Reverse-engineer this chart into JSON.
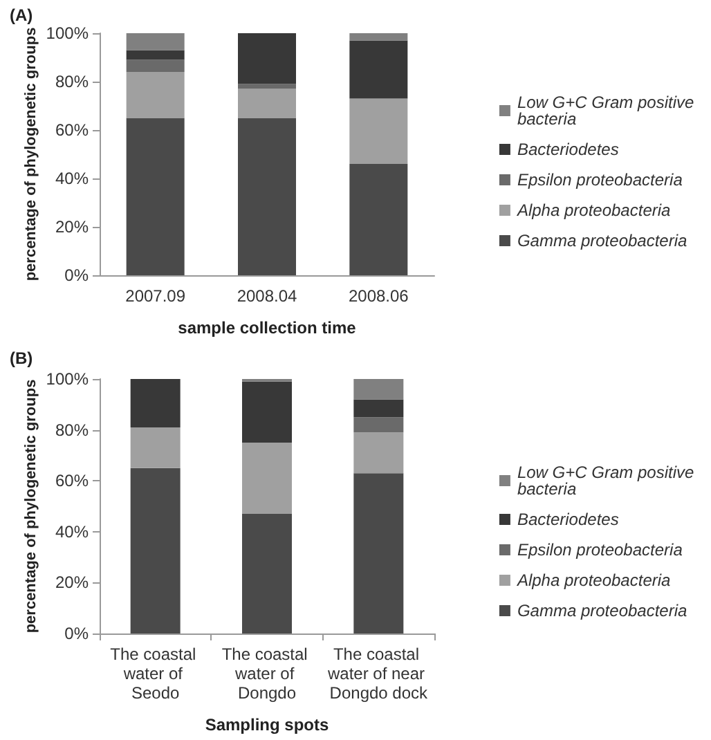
{
  "chart_data": [
    {
      "type": "bar",
      "stacked": true,
      "annotations": [
        "(A)"
      ],
      "xlabel": "sample collection time",
      "ylabel": "percentage of phylogenetic groups",
      "categories": [
        "2007.09",
        "2008.04",
        "2008.06"
      ],
      "ylim": [
        0,
        100
      ],
      "yticks": [
        {
          "value": 0,
          "label": "0%"
        },
        {
          "value": 20,
          "label": "20%"
        },
        {
          "value": 40,
          "label": "40%"
        },
        {
          "value": 60,
          "label": "60%"
        },
        {
          "value": 80,
          "label": "80%"
        },
        {
          "value": 100,
          "label": "100%"
        }
      ],
      "grid": false,
      "legend": "right",
      "series": [
        {
          "name": "Gamma proteobacteria",
          "color": "#4a4a4a",
          "values": [
            65,
            65,
            46
          ]
        },
        {
          "name": "Alpha proteobacteria",
          "color": "#a0a0a0",
          "values": [
            19,
            12,
            27
          ]
        },
        {
          "name": "Epsilon proteobacteria",
          "color": "#6a6a6a",
          "values": [
            5,
            2,
            0
          ]
        },
        {
          "name": "Bacteriodetes",
          "color": "#383838",
          "values": [
            4,
            21,
            24
          ]
        },
        {
          "name": "Low G+C Gram positive bacteria",
          "color": "#808080",
          "values": [
            7,
            0,
            3
          ]
        }
      ]
    },
    {
      "type": "bar",
      "stacked": true,
      "annotations": [
        "(B)"
      ],
      "xlabel": "Sampling spots",
      "ylabel": "percentage of phylogenetic groups",
      "categories": [
        "The coastal water of Seodo",
        "The coastal water of Dongdo",
        "The coastal water of near Dongdo dock"
      ],
      "ylim": [
        0,
        100
      ],
      "yticks": [
        {
          "value": 0,
          "label": "0%"
        },
        {
          "value": 20,
          "label": "20%"
        },
        {
          "value": 40,
          "label": "40%"
        },
        {
          "value": 60,
          "label": "60%"
        },
        {
          "value": 80,
          "label": "80%"
        },
        {
          "value": 100,
          "label": "100%"
        }
      ],
      "grid": false,
      "legend": "right",
      "series": [
        {
          "name": "Gamma proteobacteria",
          "color": "#4a4a4a",
          "values": [
            65,
            47,
            63
          ]
        },
        {
          "name": "Alpha proteobacteria",
          "color": "#a0a0a0",
          "values": [
            16,
            28,
            16
          ]
        },
        {
          "name": "Epsilon proteobacteria",
          "color": "#6a6a6a",
          "values": [
            0,
            0,
            6
          ]
        },
        {
          "name": "Bacteriodetes",
          "color": "#383838",
          "values": [
            19,
            24,
            7
          ]
        },
        {
          "name": "Low G+C Gram positive bacteria",
          "color": "#808080",
          "values": [
            0,
            1,
            8
          ]
        }
      ]
    }
  ]
}
